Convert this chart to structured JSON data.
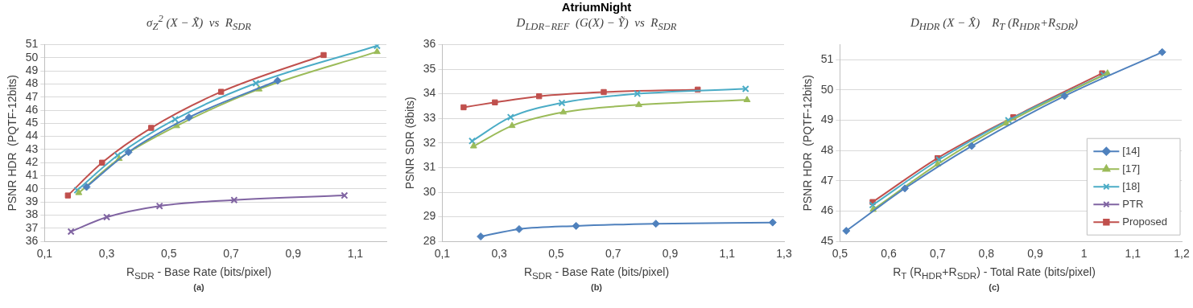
{
  "chart_data": [
    {
      "type": "line",
      "title": "σ$_{Z}$$^{2}$ (X − X̃)  vs  R$_{SDR}$",
      "xlabel": "R$_{SDR}$ - Base Rate (bits/pixel)",
      "ylabel": "PSNR HDR  (PQTF-12bits)",
      "xlim": [
        0.1,
        1.2
      ],
      "xticks": [
        {
          "value": 0.1,
          "label": "0,1"
        },
        {
          "value": 0.3,
          "label": "0,3"
        },
        {
          "value": 0.5,
          "label": "0,5"
        },
        {
          "value": 0.7,
          "label": "0,7"
        },
        {
          "value": 0.9,
          "label": "0,9"
        },
        {
          "value": 1.1,
          "label": "1,1"
        }
      ],
      "ylim": [
        36,
        51
      ],
      "yticks": [
        36,
        37,
        38,
        39,
        40,
        41,
        42,
        43,
        44,
        45,
        46,
        47,
        48,
        49,
        50,
        51
      ],
      "grid": "y",
      "line_style": "solid",
      "annotations": [
        "(a)"
      ],
      "series": [
        {
          "color": "#4f81bd",
          "marker": "diamond",
          "x": [
            0.235,
            0.37,
            0.565,
            0.85
          ],
          "values": [
            40.15,
            42.8,
            45.45,
            48.25
          ]
        },
        {
          "color": "#9bbb59",
          "marker": "triangle",
          "x": [
            0.21,
            0.34,
            0.525,
            0.79,
            1.17
          ],
          "values": [
            39.7,
            42.3,
            44.8,
            47.6,
            50.45
          ]
        },
        {
          "color": "#4bacc6",
          "marker": "cross",
          "x": [
            0.205,
            0.335,
            0.52,
            0.78,
            1.17
          ],
          "values": [
            39.9,
            42.55,
            45.3,
            48.05,
            50.9
          ]
        },
        {
          "color": "#8064a2",
          "marker": "cross",
          "x": [
            0.185,
            0.3,
            0.47,
            0.71,
            1.065
          ],
          "values": [
            36.75,
            37.85,
            38.7,
            39.15,
            39.5
          ]
        },
        {
          "color": "#c0504d",
          "marker": "square",
          "x": [
            0.175,
            0.285,
            0.443,
            0.668,
            0.998
          ],
          "values": [
            39.5,
            42.0,
            44.65,
            47.4,
            50.2
          ]
        }
      ]
    },
    {
      "type": "line",
      "title": "AtriumNight",
      "subtitle": "D$_{LDR−REF}$  (G(X) − Ỹ)  vs  R$_{SDR}$",
      "xlabel": "R$_{SDR}$ - Base Rate (bits/pixel)",
      "ylabel": "PSNR SDR (8bits)",
      "xlim": [
        0.1,
        1.3
      ],
      "xticks": [
        {
          "value": 0.1,
          "label": "0,1"
        },
        {
          "value": 0.3,
          "label": "0,3"
        },
        {
          "value": 0.5,
          "label": "0,5"
        },
        {
          "value": 0.7,
          "label": "0,7"
        },
        {
          "value": 0.9,
          "label": "0,9"
        },
        {
          "value": 1.1,
          "label": "1,1"
        },
        {
          "value": 1.3,
          "label": "1,3"
        }
      ],
      "ylim": [
        28,
        36
      ],
      "yticks": [
        28,
        29,
        30,
        31,
        32,
        33,
        34,
        35,
        36
      ],
      "grid": "y",
      "line_style": "solid",
      "annotations": [
        "(b)"
      ],
      "series": [
        {
          "color": "#4f81bd",
          "marker": "diamond",
          "x": [
            0.235,
            0.37,
            0.57,
            0.85,
            1.26
          ],
          "values": [
            28.2,
            28.5,
            28.63,
            28.72,
            28.77
          ]
        },
        {
          "color": "#9bbb59",
          "marker": "triangle",
          "x": [
            0.21,
            0.345,
            0.525,
            0.79,
            1.17
          ],
          "values": [
            31.87,
            32.7,
            33.25,
            33.55,
            33.75
          ]
        },
        {
          "color": "#4bacc6",
          "marker": "cross",
          "x": [
            0.205,
            0.34,
            0.52,
            0.785,
            1.165
          ],
          "values": [
            32.08,
            33.05,
            33.63,
            34.0,
            34.2
          ]
        },
        {
          "color": "#c0504d",
          "marker": "square",
          "x": [
            0.175,
            0.285,
            0.44,
            0.667,
            0.997
          ],
          "values": [
            33.45,
            33.65,
            33.9,
            34.07,
            34.17
          ]
        }
      ]
    },
    {
      "type": "line",
      "title": "D$_{HDR}$ (X − X̂)    R$_{T}$ (R$_{HDR}$+R$_{SDR}$)",
      "xlabel": "R$_{T}$ (R$_{HDR}$+R$_{SDR}$) - Total Rate (bits/pixel)",
      "ylabel": "PSNR HDR  (PQTF-12bits)",
      "xlim": [
        0.5,
        1.2
      ],
      "xticks": [
        {
          "value": 0.5,
          "label": "0,5"
        },
        {
          "value": 0.6,
          "label": "0,6"
        },
        {
          "value": 0.7,
          "label": "0,7"
        },
        {
          "value": 0.8,
          "label": "0,8"
        },
        {
          "value": 0.9,
          "label": "0,9"
        },
        1,
        {
          "value": 1.1,
          "label": "1,1"
        },
        {
          "value": 1.2,
          "label": "1,2"
        }
      ],
      "ylim": [
        45,
        51.5
      ],
      "yticks": [
        45,
        46,
        47,
        48,
        49,
        50,
        51
      ],
      "grid": "y",
      "line_style": "solid",
      "legend": "bottom right",
      "annotations": [
        "(c)"
      ],
      "series": [
        {
          "name": "[14]",
          "color": "#4f81bd",
          "marker": "diamond",
          "x": [
            0.513,
            0.633,
            0.77,
            0.96,
            1.16
          ],
          "values": [
            45.35,
            46.75,
            48.15,
            49.8,
            51.25
          ]
        },
        {
          "name": "[17]",
          "color": "#9bbb59",
          "marker": "triangle",
          "x": [
            0.568,
            0.7,
            0.84,
            1.048
          ],
          "values": [
            46.05,
            47.55,
            48.9,
            50.55
          ]
        },
        {
          "name": "[18]",
          "color": "#4bacc6",
          "marker": "cross",
          "x": [
            0.567,
            0.703,
            0.845,
            1.04
          ],
          "values": [
            46.2,
            47.7,
            49.0,
            50.5
          ]
        },
        {
          "name": "PTR",
          "color": "#8064a2",
          "marker": "cross"
        },
        {
          "name": "Proposed",
          "color": "#c0504d",
          "marker": "square",
          "x": [
            0.567,
            0.7,
            0.855,
            1.037
          ],
          "values": [
            46.3,
            47.75,
            49.1,
            50.55
          ]
        }
      ]
    }
  ]
}
